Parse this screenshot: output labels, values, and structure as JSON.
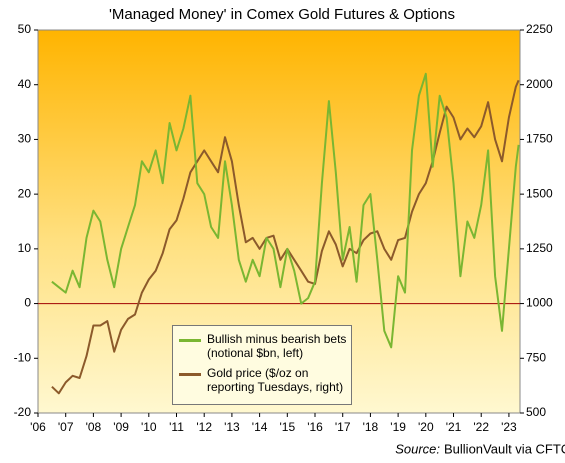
{
  "chart_data": {
    "type": "line",
    "title": "'Managed Money' in Comex Gold Futures & Options",
    "source_label": "Source:",
    "source": "BullionVault via CFTC, LBMA",
    "x": [
      2006.5,
      2006.75,
      2007,
      2007.25,
      2007.5,
      2007.75,
      2008,
      2008.25,
      2008.5,
      2008.75,
      2009,
      2009.25,
      2009.5,
      2009.75,
      2010,
      2010.25,
      2010.5,
      2010.75,
      2011,
      2011.25,
      2011.5,
      2011.75,
      2012,
      2012.25,
      2012.5,
      2012.75,
      2013,
      2013.25,
      2013.5,
      2013.75,
      2014,
      2014.25,
      2014.5,
      2014.75,
      2015,
      2015.25,
      2015.5,
      2015.75,
      2016,
      2016.25,
      2016.5,
      2016.75,
      2017,
      2017.25,
      2017.5,
      2017.75,
      2018,
      2018.25,
      2018.5,
      2018.75,
      2019,
      2019.25,
      2019.5,
      2019.75,
      2020,
      2020.25,
      2020.5,
      2020.75,
      2021,
      2021.25,
      2021.5,
      2021.75,
      2022,
      2022.25,
      2022.5,
      2022.75,
      2023,
      2023.25,
      2023.35
    ],
    "series": [
      {
        "name": "Bullish minus bearish bets (notional $bn, left)",
        "color": "#7ab632",
        "axis": "y",
        "values": [
          4,
          3,
          2,
          6,
          3,
          12,
          17,
          15,
          8,
          3,
          10,
          14,
          18,
          26,
          24,
          28,
          22,
          33,
          28,
          32,
          38,
          22,
          20,
          14,
          12,
          26,
          18,
          8,
          4,
          8,
          5,
          12,
          10,
          3,
          10,
          6,
          0,
          1,
          4,
          22,
          37,
          24,
          8,
          14,
          4,
          18,
          20,
          8,
          -5,
          -8,
          5,
          2,
          28,
          38,
          42,
          25,
          38,
          34,
          22,
          5,
          15,
          12,
          18,
          28,
          5,
          -5,
          10,
          25,
          29
        ]
      },
      {
        "name": "Gold price ($/oz on reporting Tuesdays, right)",
        "color": "#8c5a2b",
        "axis": "y2",
        "values": [
          620,
          590,
          640,
          670,
          660,
          760,
          900,
          900,
          920,
          780,
          880,
          930,
          950,
          1050,
          1110,
          1150,
          1230,
          1340,
          1380,
          1480,
          1600,
          1650,
          1700,
          1650,
          1600,
          1760,
          1650,
          1450,
          1280,
          1300,
          1250,
          1300,
          1310,
          1200,
          1250,
          1200,
          1150,
          1100,
          1090,
          1240,
          1330,
          1270,
          1170,
          1250,
          1230,
          1290,
          1320,
          1330,
          1250,
          1200,
          1290,
          1300,
          1420,
          1500,
          1550,
          1650,
          1780,
          1900,
          1850,
          1750,
          1800,
          1760,
          1810,
          1920,
          1750,
          1650,
          1850,
          1990,
          2020
        ]
      }
    ],
    "xlim": [
      2006,
      2023.4
    ],
    "xticks": [
      {
        "value": 2006,
        "label": "'06"
      },
      {
        "value": 2007,
        "label": "'07"
      },
      {
        "value": 2008,
        "label": "'08"
      },
      {
        "value": 2009,
        "label": "'09"
      },
      {
        "value": 2010,
        "label": "'10"
      },
      {
        "value": 2011,
        "label": "'11"
      },
      {
        "value": 2012,
        "label": "'12"
      },
      {
        "value": 2013,
        "label": "'13"
      },
      {
        "value": 2014,
        "label": "'14"
      },
      {
        "value": 2015,
        "label": "'15"
      },
      {
        "value": 2016,
        "label": "'16"
      },
      {
        "value": 2017,
        "label": "'17"
      },
      {
        "value": 2018,
        "label": "'18"
      },
      {
        "value": 2019,
        "label": "'19"
      },
      {
        "value": 2020,
        "label": "'20"
      },
      {
        "value": 2021,
        "label": "'21"
      },
      {
        "value": 2022,
        "label": "'22"
      },
      {
        "value": 2023,
        "label": "'23"
      }
    ],
    "ylim": [
      -20,
      50
    ],
    "yticks": [
      -20,
      -10,
      0,
      10,
      20,
      30,
      40,
      50
    ],
    "y2lim": [
      500,
      2250
    ],
    "y2ticks": [
      500,
      750,
      1000,
      1250,
      1500,
      1750,
      2000,
      2250
    ]
  }
}
